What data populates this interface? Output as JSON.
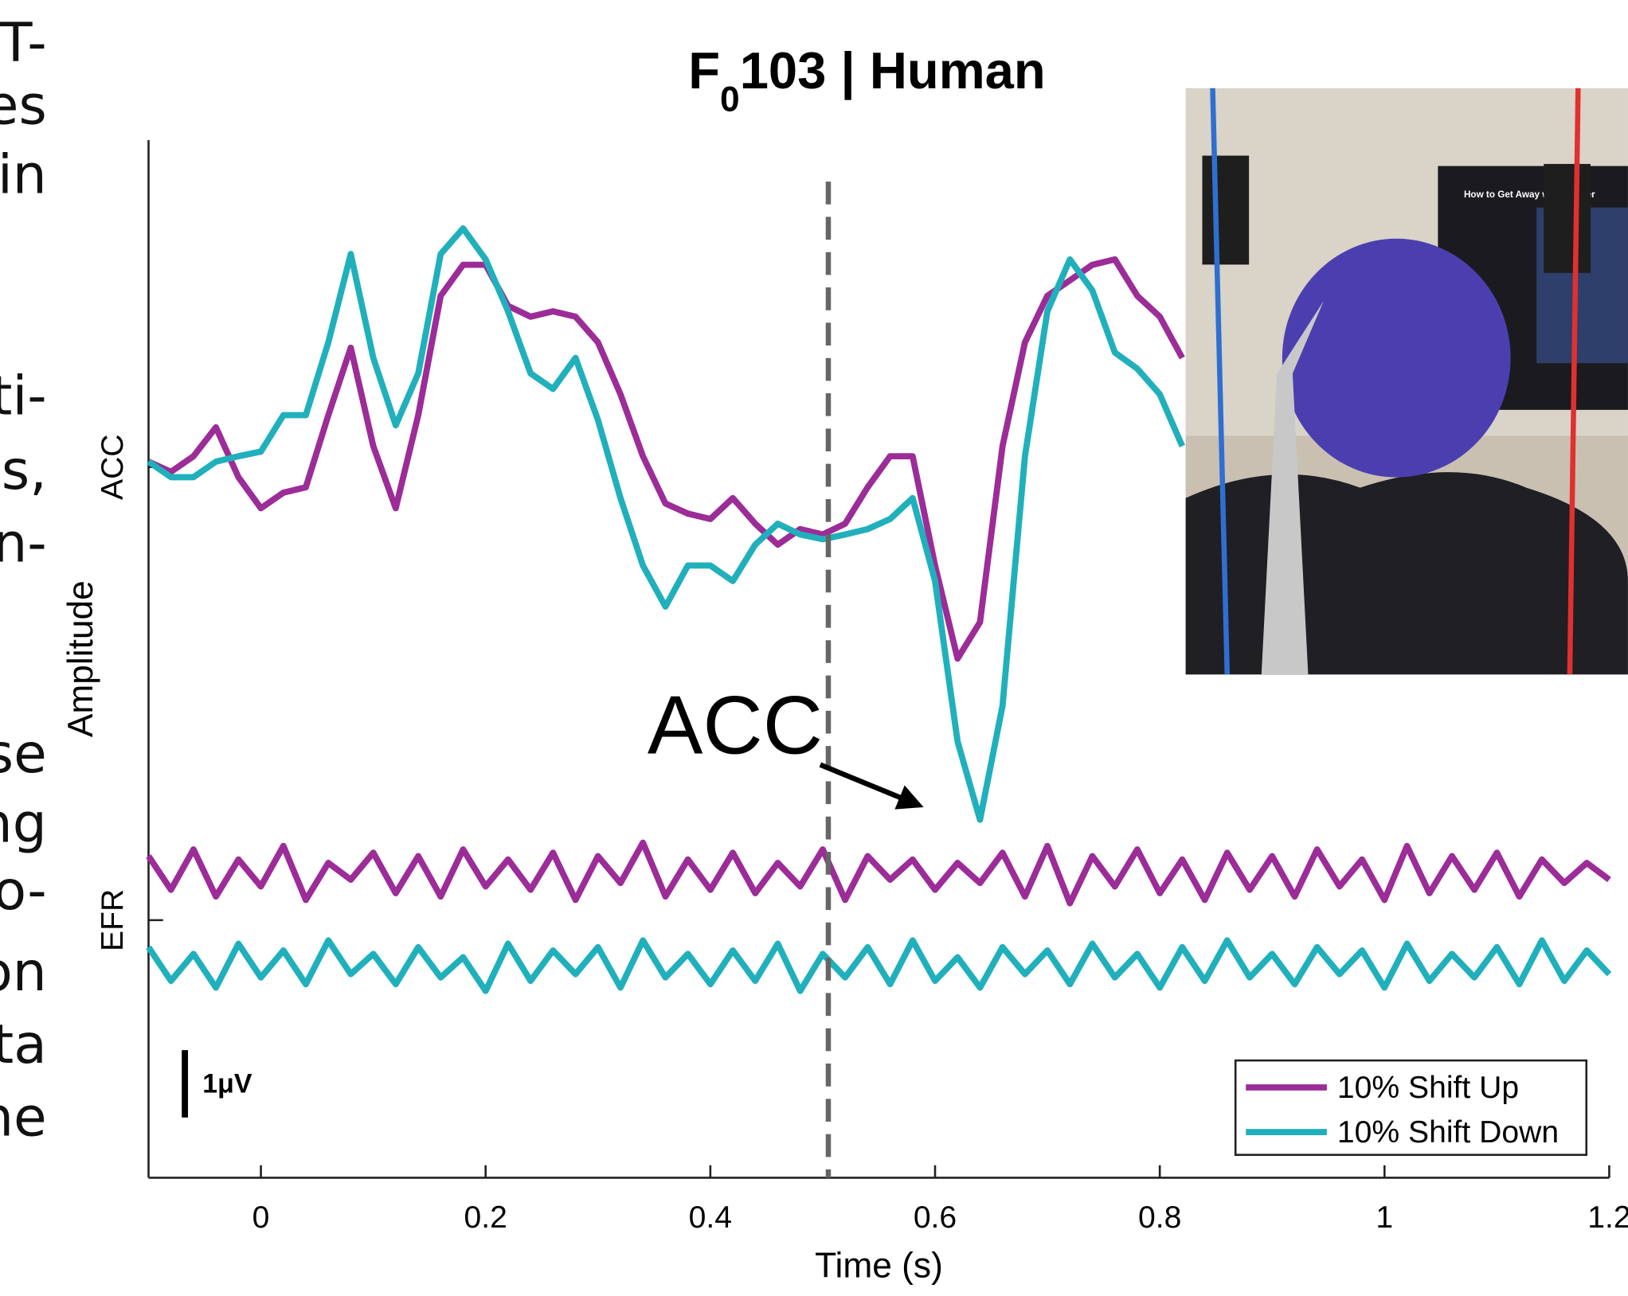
{
  "side_text": [
    "T-",
    "es",
    "in",
    "ti-",
    "es,",
    "n-",
    "se",
    "ng",
    "o-",
    "on",
    "ta",
    "ne"
  ],
  "photo_text": "How to Get Away with Murder",
  "chart_data": {
    "type": "line",
    "title_parts": [
      "F",
      "0",
      "103 | Human"
    ],
    "x_label": "Time (s)",
    "y_label": "Amplitude",
    "annotation": "ACC",
    "scale_bar": {
      "value": 1,
      "label": "1μV"
    },
    "marker_x": 0.505,
    "xlim": [
      -0.1,
      1.2
    ],
    "xticks": [
      0,
      0.2,
      0.4,
      0.6,
      0.8,
      1,
      1.2
    ],
    "ylim": [
      -3.82,
      11.57
    ],
    "yticks": [
      {
        "value": 0,
        "label": "EFR"
      },
      {
        "value": 6.72,
        "label": "ACC"
      }
    ],
    "legend": "lower right",
    "x": [
      -0.1,
      -0.08,
      -0.06,
      -0.04,
      -0.02,
      0,
      0.02,
      0.04,
      0.06,
      0.08,
      0.1,
      0.12,
      0.14,
      0.16,
      0.18,
      0.2,
      0.22,
      0.24,
      0.26,
      0.28,
      0.3,
      0.32,
      0.34,
      0.36,
      0.38,
      0.4,
      0.42,
      0.44,
      0.46,
      0.48,
      0.5,
      0.52,
      0.54,
      0.56,
      0.58,
      0.6,
      0.62,
      0.64,
      0.66,
      0.68,
      0.7,
      0.72,
      0.74,
      0.76,
      0.78,
      0.8,
      0.82,
      0.84,
      0.86,
      0.88,
      0.9,
      0.92,
      0.94,
      0.96,
      0.98,
      1,
      1.02,
      1.04,
      1.06,
      1.08,
      1.1,
      1.12,
      1.14,
      1.16,
      1.18,
      1.2
    ],
    "series": [
      {
        "name": "10% Shift Up",
        "color": "#9c2c98",
        "values": [
          6.8,
          6.65,
          6.88,
          7.31,
          6.57,
          6.11,
          6.34,
          6.42,
          7.49,
          8.49,
          7.03,
          6.11,
          7.49,
          9.26,
          9.72,
          9.72,
          9.11,
          8.95,
          9.03,
          8.95,
          8.57,
          7.8,
          6.88,
          6.18,
          6.03,
          5.95,
          6.26,
          5.88,
          5.57,
          5.8,
          5.72,
          5.88,
          6.42,
          6.88,
          6.88,
          5.26,
          3.88,
          4.42,
          7.03,
          8.57,
          9.26,
          9.49,
          9.72,
          9.8,
          9.26,
          8.95,
          8.34,
          null,
          null,
          null,
          null,
          null,
          null,
          null,
          null,
          null,
          null,
          null,
          null,
          null,
          null,
          null,
          null,
          null,
          null,
          null
        ],
        "efr_values": [
          0.95,
          0.45,
          1.05,
          0.35,
          0.9,
          0.5,
          1.1,
          0.3,
          0.85,
          0.6,
          1.0,
          0.4,
          0.95,
          0.35,
          1.05,
          0.5,
          0.9,
          0.45,
          1.0,
          0.3,
          0.95,
          0.55,
          1.15,
          0.35,
          0.9,
          0.45,
          1.0,
          0.4,
          0.85,
          0.5,
          1.05,
          0.3,
          0.95,
          0.6,
          0.9,
          0.45,
          0.85,
          0.55,
          1.0,
          0.35,
          1.1,
          0.25,
          0.95,
          0.5,
          1.05,
          0.4,
          0.9,
          0.3,
          1.0,
          0.45,
          0.95,
          0.35,
          1.05,
          0.5,
          0.9,
          0.3,
          1.1,
          0.4,
          0.95,
          0.45,
          1.0,
          0.35,
          0.9,
          0.55,
          0.85,
          0.6
        ]
      },
      {
        "name": "10% Shift Down",
        "color": "#20b0bc",
        "values": [
          6.8,
          6.57,
          6.57,
          6.8,
          6.88,
          6.95,
          7.49,
          7.49,
          8.57,
          9.88,
          8.34,
          7.34,
          8.11,
          9.88,
          10.26,
          9.8,
          9.03,
          8.11,
          7.88,
          8.34,
          7.42,
          6.26,
          5.26,
          4.65,
          5.26,
          5.26,
          5.03,
          5.57,
          5.88,
          5.72,
          5.65,
          5.72,
          5.8,
          5.95,
          6.26,
          5.03,
          2.65,
          1.49,
          3.18,
          6.88,
          9.03,
          9.8,
          9.34,
          8.42,
          8.18,
          7.8,
          7.03,
          null,
          null,
          null,
          null,
          null,
          null,
          null,
          null,
          null,
          null,
          null,
          null,
          null,
          null,
          null,
          null,
          null,
          null,
          null
        ],
        "efr_values": [
          -0.4,
          -0.9,
          -0.5,
          -1.0,
          -0.35,
          -0.85,
          -0.45,
          -0.95,
          -0.3,
          -0.8,
          -0.5,
          -0.95,
          -0.4,
          -0.85,
          -0.55,
          -1.05,
          -0.35,
          -0.9,
          -0.45,
          -0.8,
          -0.4,
          -1.0,
          -0.3,
          -0.85,
          -0.5,
          -0.95,
          -0.45,
          -0.9,
          -0.35,
          -1.05,
          -0.5,
          -0.85,
          -0.4,
          -0.95,
          -0.3,
          -0.9,
          -0.55,
          -1.0,
          -0.4,
          -0.8,
          -0.45,
          -0.95,
          -0.35,
          -0.85,
          -0.5,
          -1.0,
          -0.4,
          -0.9,
          -0.3,
          -0.85,
          -0.5,
          -0.95,
          -0.4,
          -0.8,
          -0.45,
          -1.0,
          -0.35,
          -0.9,
          -0.5,
          -0.85,
          -0.4,
          -0.95,
          -0.3,
          -0.9,
          -0.45,
          -0.8
        ]
      }
    ]
  }
}
